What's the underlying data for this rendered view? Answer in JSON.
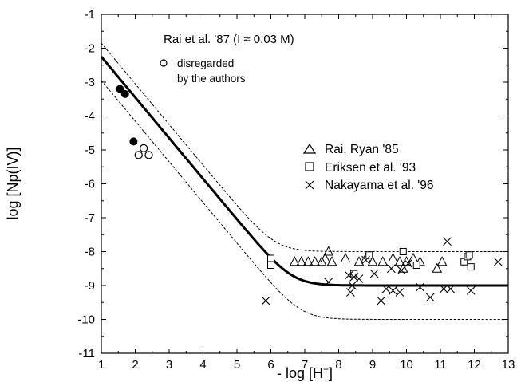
{
  "chart_data": {
    "type": "scatter",
    "xlabel": "- log [H",
    "xlabel_sup": "+",
    "xlabel_end": "]",
    "ylabel": "log [Np(IV)]",
    "xlim": [
      1,
      13
    ],
    "ylim": [
      -11,
      -1
    ],
    "x_ticks": [
      1,
      2,
      3,
      4,
      5,
      6,
      7,
      8,
      9,
      10,
      11,
      12,
      13
    ],
    "y_ticks": [
      -1,
      -2,
      -3,
      -4,
      -5,
      -6,
      -7,
      -8,
      -9,
      -10,
      -11
    ],
    "grid": false,
    "annotations": {
      "rai87_title": "Rai et al. '87  (I ≈ 0.03 M)",
      "disregarded_line1": "disregarded",
      "disregarded_line2": "by the authors"
    },
    "legend": {
      "placement": "center-right",
      "entries": [
        {
          "label": "Rai, Ryan '85",
          "marker": "triangle-open"
        },
        {
          "label": "Eriksen et al. '93",
          "marker": "square-open"
        },
        {
          "label": "Nakayama et al. '96",
          "marker": "x"
        }
      ]
    },
    "curves": {
      "fit_curve": {
        "style": "solid-thick",
        "limit": -9.0,
        "a": 0.215,
        "x0": 1.0,
        "y0": -2.25
      },
      "upper_bound": {
        "style": "dashed",
        "limit": -8.0,
        "a": 0.215,
        "x0": 1.0,
        "y0": -1.85
      },
      "lower_bound": {
        "style": "dashed",
        "limit": -10.0,
        "a": 0.215,
        "x0": 1.0,
        "y0": -2.95
      }
    },
    "series": [
      {
        "name": "Rai et al. '87",
        "marker": "circle-filled",
        "points": [
          [
            1.55,
            -3.2
          ],
          [
            1.7,
            -3.35
          ],
          [
            1.95,
            -4.75
          ]
        ]
      },
      {
        "name": "disregarded by the authors",
        "marker": "circle-open",
        "points": [
          [
            2.1,
            -5.15
          ],
          [
            2.25,
            -4.95
          ],
          [
            2.4,
            -5.15
          ]
        ]
      },
      {
        "name": "Rai, Ryan '85",
        "marker": "triangle-open",
        "points": [
          [
            6.7,
            -8.3
          ],
          [
            6.9,
            -8.3
          ],
          [
            7.1,
            -8.3
          ],
          [
            7.3,
            -8.3
          ],
          [
            7.5,
            -8.3
          ],
          [
            7.6,
            -8.2
          ],
          [
            7.7,
            -8.0
          ],
          [
            7.8,
            -8.3
          ],
          [
            8.2,
            -8.2
          ],
          [
            8.6,
            -8.3
          ],
          [
            8.8,
            -8.2
          ],
          [
            9.0,
            -8.3
          ],
          [
            9.3,
            -8.3
          ],
          [
            9.6,
            -8.2
          ],
          [
            9.8,
            -8.3
          ],
          [
            9.9,
            -8.5
          ],
          [
            10.0,
            -8.3
          ],
          [
            10.2,
            -8.2
          ],
          [
            10.4,
            -8.3
          ],
          [
            10.9,
            -8.5
          ],
          [
            11.05,
            -8.3
          ]
        ]
      },
      {
        "name": "Eriksen et al. '93",
        "marker": "square-open",
        "points": [
          [
            6.0,
            -8.2
          ],
          [
            6.0,
            -8.4
          ],
          [
            8.45,
            -8.65
          ],
          [
            8.9,
            -8.1
          ],
          [
            9.9,
            -8.0
          ],
          [
            10.3,
            -8.4
          ],
          [
            11.7,
            -8.3
          ],
          [
            11.8,
            -8.15
          ],
          [
            11.85,
            -8.1
          ],
          [
            11.9,
            -8.45
          ]
        ]
      },
      {
        "name": "Nakayama et al. '96",
        "marker": "x",
        "points": [
          [
            5.85,
            -9.45
          ],
          [
            7.7,
            -8.9
          ],
          [
            8.3,
            -8.7
          ],
          [
            8.35,
            -9.2
          ],
          [
            8.4,
            -9.0
          ],
          [
            8.45,
            -8.75
          ],
          [
            8.6,
            -8.8
          ],
          [
            8.8,
            -8.25
          ],
          [
            9.05,
            -8.65
          ],
          [
            9.25,
            -9.45
          ],
          [
            9.4,
            -9.1
          ],
          [
            9.55,
            -8.5
          ],
          [
            9.6,
            -9.15
          ],
          [
            9.8,
            -9.2
          ],
          [
            9.85,
            -8.55
          ],
          [
            10.05,
            -8.35
          ],
          [
            10.4,
            -9.05
          ],
          [
            10.7,
            -9.35
          ],
          [
            11.1,
            -9.1
          ],
          [
            11.2,
            -7.7
          ],
          [
            11.3,
            -9.1
          ],
          [
            11.9,
            -9.15
          ],
          [
            12.7,
            -8.3
          ]
        ]
      }
    ]
  }
}
